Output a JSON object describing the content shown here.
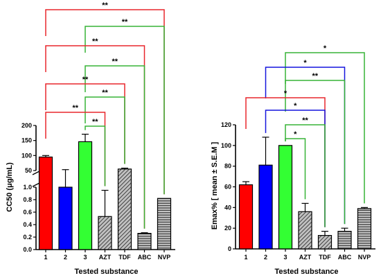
{
  "chart_data": [
    {
      "type": "bar",
      "title": "",
      "xlabel": "Tested substance",
      "ylabel": "CC50 (μg/mL)",
      "axis_break": {
        "between": [
          1.0,
          50
        ]
      },
      "ylim_lower": [
        0,
        1.0
      ],
      "ylim_upper": [
        50,
        200
      ],
      "yticks_lower": [
        "0.0",
        "0.2",
        "0.4",
        "0.6",
        "0.8",
        "1.0"
      ],
      "yticks_upper": [
        "50",
        "100",
        "150",
        "200"
      ],
      "grid": false,
      "categories": [
        "1",
        "2",
        "3",
        "AZT",
        "TDF",
        "ABC",
        "NVP"
      ],
      "values": [
        95,
        38,
        146,
        0.53,
        55,
        0.26,
        0.82
      ],
      "errors": [
        5,
        15,
        25,
        0.42,
        3,
        0.01,
        0
      ],
      "fills": [
        "#ff0000",
        "#0000ff",
        "#33ff33",
        "hatch-diagonal",
        "hatch-diagonal",
        "hatch-horizontal",
        "hatch-horizontal"
      ],
      "significance": [
        {
          "from": "1",
          "to": "NVP",
          "label": "**",
          "color": "#e8262c"
        },
        {
          "from": "3",
          "to": "NVP",
          "label": "**",
          "color": "#36b336"
        },
        {
          "from": "1",
          "to": "ABC",
          "label": "**",
          "color": "#e8262c"
        },
        {
          "from": "3",
          "to": "ABC",
          "label": "**",
          "color": "#36b336"
        },
        {
          "from": "1",
          "to": "TDF",
          "label": "**",
          "color": "#e8262c"
        },
        {
          "from": "3",
          "to": "TDF",
          "label": "**",
          "color": "#36b336"
        },
        {
          "from": "1",
          "to": "AZT",
          "label": "**",
          "color": "#e8262c"
        },
        {
          "from": "3",
          "to": "AZT",
          "label": "**",
          "color": "#36b336"
        }
      ]
    },
    {
      "type": "bar",
      "title": "",
      "xlabel": "Tested substance",
      "ylabel": "Emax% [ mean ± S.E.M ]",
      "ylim": [
        0,
        120
      ],
      "yticks": [
        "0",
        "20",
        "40",
        "60",
        "80",
        "100",
        "120"
      ],
      "grid": false,
      "categories": [
        "1",
        "2",
        "3",
        "AZT",
        "TDF",
        "ABC",
        "NVP"
      ],
      "values": [
        62,
        81,
        100,
        36,
        13,
        17,
        39
      ],
      "errors": [
        3,
        27,
        0,
        8,
        4,
        3,
        1
      ],
      "fills": [
        "#ff0000",
        "#0000ff",
        "#33ff33",
        "hatch-diagonal",
        "hatch-diagonal",
        "hatch-horizontal",
        "hatch-horizontal"
      ],
      "significance": [
        {
          "from": "3",
          "to": "NVP",
          "label": "*",
          "color": "#36b336"
        },
        {
          "from": "2",
          "to": "ABC",
          "label": "*",
          "color": "#1414dd"
        },
        {
          "from": "3",
          "to": "ABC",
          "label": "**",
          "color": "#36b336"
        },
        {
          "from": "1",
          "to": "TDF",
          "label": "*",
          "color": "#e8262c"
        },
        {
          "from": "2",
          "to": "TDF",
          "label": "*",
          "color": "#1414dd"
        },
        {
          "from": "3",
          "to": "TDF",
          "label": "**",
          "color": "#36b336"
        },
        {
          "from": "3",
          "to": "AZT",
          "label": "*",
          "color": "#36b336"
        }
      ]
    }
  ]
}
